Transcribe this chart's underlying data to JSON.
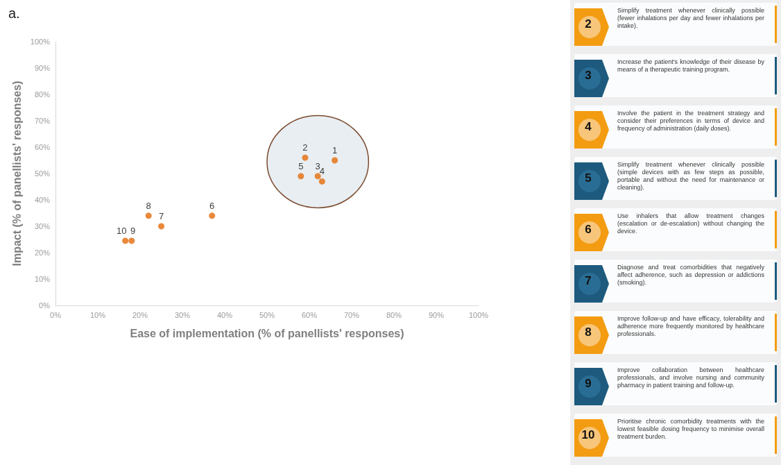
{
  "chart_data": {
    "type": "scatter",
    "xlabel": "Ease of implementation (% of panellists' responses)",
    "ylabel": "Impact (% of panellists' responses)",
    "x": [
      66,
      59,
      62,
      63,
      58,
      37,
      25,
      22,
      18,
      16.5
    ],
    "values": [
      55,
      56,
      49,
      47,
      49,
      34,
      30,
      34,
      24.5,
      24.5
    ],
    "color": "#e46c0a",
    "marker": "circle",
    "xlim": [
      0,
      100
    ],
    "xticks": [
      {
        "value": 0,
        "label": "0%"
      },
      {
        "value": 10,
        "label": "10%"
      },
      {
        "value": 20,
        "label": "20%"
      },
      {
        "value": 30,
        "label": "30%"
      },
      {
        "value": 40,
        "label": "40%"
      },
      {
        "value": 50,
        "label": "50%"
      },
      {
        "value": 60,
        "label": "60%"
      },
      {
        "value": 70,
        "label": "70%"
      },
      {
        "value": 80,
        "label": "80%"
      },
      {
        "value": 90,
        "label": "90%"
      },
      {
        "value": 100,
        "label": "100%"
      }
    ],
    "ylim": [
      0,
      100
    ],
    "yticks": [
      {
        "value": 0,
        "label": "0%"
      },
      {
        "value": 10,
        "label": "10%"
      },
      {
        "value": 20,
        "label": "20%"
      },
      {
        "value": 30,
        "label": "30%"
      },
      {
        "value": 40,
        "label": "40%"
      },
      {
        "value": 50,
        "label": "50%"
      },
      {
        "value": 60,
        "label": "60%"
      },
      {
        "value": 70,
        "label": "70%"
      },
      {
        "value": 80,
        "label": "80%"
      },
      {
        "value": 90,
        "label": "90%"
      },
      {
        "value": 100,
        "label": "100%"
      }
    ],
    "grid": false,
    "annotations": [
      "a.",
      {
        "text": "1",
        "x": 66,
        "y": 55
      },
      {
        "text": "2",
        "x": 59,
        "y": 56
      },
      {
        "text": "3",
        "x": 62,
        "y": 49
      },
      {
        "text": "4",
        "x": 63,
        "y": 47
      },
      {
        "text": "5",
        "x": 58,
        "y": 49
      },
      {
        "text": "6",
        "x": 37,
        "y": 34
      },
      {
        "text": "7",
        "x": 25,
        "y": 30
      },
      {
        "text": "8",
        "x": 22,
        "y": 34
      },
      {
        "text": "9",
        "x": 18.3,
        "y": 24.5
      },
      {
        "text": "10",
        "x": 15.6,
        "y": 24.5
      },
      "2",
      "Simplify treatment whenever clinically possible (fewer inhalations per day and fewer inhalations per intake).",
      "3",
      "Increase the patient's knowledge of their disease by means of a therapeutic training program.",
      "4",
      "Involve the patient in the treatment strategy and consider their preferences in terms of device and frequency of administration (daily doses).",
      "5",
      "Simplify treatment whenever clinically possible (simple devices with as few steps as possible, portable and without the need for maintenance or cleaning).",
      "6",
      "Use inhalers that allow treatment changes (escalation or de-escalation) without changing the device.",
      "7",
      "Diagnose and treat comorbidities that negatively affect adherence, such as depression or addictions (smoking).",
      "8",
      "Improve follow-up and have efficacy, tolerability and adherence more frequently monitored by healthcare professionals.",
      "9",
      "Improve collaboration between healthcare professionals, and involve nursing and community pharmacy in patient training and follow-up.",
      "10",
      "Prioritise chronic comorbidity treatments with the lowest feasible dosing frequency to minimise overall treatment burden."
    ]
  }
}
